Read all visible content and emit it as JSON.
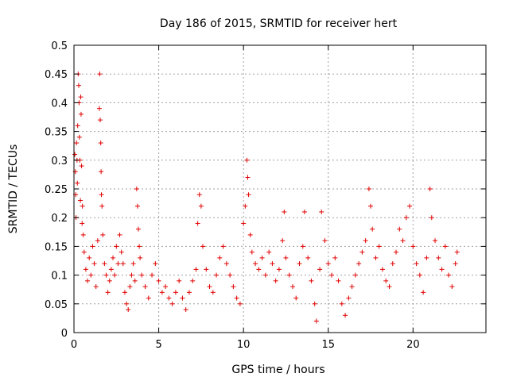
{
  "chart_data": {
    "type": "scatter",
    "title": "Day 186 of 2015, SRMTID for receiver hert",
    "xlabel": "GPS time / hours",
    "ylabel": "SRMTID / TECUs",
    "xlim": [
      0,
      24.3
    ],
    "ylim": [
      0,
      0.5
    ],
    "xticks": [
      0,
      5,
      10,
      15,
      20
    ],
    "yticks": [
      0,
      0.05,
      0.1,
      0.15,
      0.2,
      0.25,
      0.3,
      0.35,
      0.4,
      0.45,
      0.5
    ],
    "grid": true,
    "marker": "+",
    "color": "#e00000",
    "series": [
      {
        "name": "SRMTID",
        "points": [
          [
            0.05,
            0.31
          ],
          [
            0.08,
            0.28
          ],
          [
            0.1,
            0.24
          ],
          [
            0.12,
            0.2
          ],
          [
            0.15,
            0.33
          ],
          [
            0.18,
            0.3
          ],
          [
            0.2,
            0.26
          ],
          [
            0.22,
            0.36
          ],
          [
            0.25,
            0.45
          ],
          [
            0.28,
            0.43
          ],
          [
            0.3,
            0.4
          ],
          [
            0.32,
            0.34
          ],
          [
            0.35,
            0.3
          ],
          [
            0.38,
            0.23
          ],
          [
            0.4,
            0.41
          ],
          [
            0.42,
            0.38
          ],
          [
            0.45,
            0.29
          ],
          [
            0.48,
            0.19
          ],
          [
            0.5,
            0.22
          ],
          [
            0.55,
            0.17
          ],
          [
            0.6,
            0.14
          ],
          [
            0.7,
            0.11
          ],
          [
            0.8,
            0.09
          ],
          [
            0.9,
            0.13
          ],
          [
            1.0,
            0.1
          ],
          [
            1.1,
            0.15
          ],
          [
            1.2,
            0.12
          ],
          [
            1.3,
            0.08
          ],
          [
            1.4,
            0.16
          ],
          [
            1.5,
            0.39
          ],
          [
            1.52,
            0.45
          ],
          [
            1.55,
            0.37
          ],
          [
            1.58,
            0.33
          ],
          [
            1.6,
            0.28
          ],
          [
            1.62,
            0.24
          ],
          [
            1.65,
            0.22
          ],
          [
            1.7,
            0.17
          ],
          [
            1.8,
            0.12
          ],
          [
            1.9,
            0.1
          ],
          [
            2.0,
            0.07
          ],
          [
            2.1,
            0.09
          ],
          [
            2.2,
            0.11
          ],
          [
            2.3,
            0.13
          ],
          [
            2.4,
            0.1
          ],
          [
            2.5,
            0.15
          ],
          [
            2.6,
            0.12
          ],
          [
            2.7,
            0.17
          ],
          [
            2.8,
            0.14
          ],
          [
            2.9,
            0.12
          ],
          [
            3.0,
            0.07
          ],
          [
            3.1,
            0.05
          ],
          [
            3.2,
            0.04
          ],
          [
            3.3,
            0.08
          ],
          [
            3.4,
            0.1
          ],
          [
            3.5,
            0.12
          ],
          [
            3.6,
            0.09
          ],
          [
            3.7,
            0.25
          ],
          [
            3.75,
            0.22
          ],
          [
            3.8,
            0.18
          ],
          [
            3.85,
            0.15
          ],
          [
            3.9,
            0.13
          ],
          [
            4.0,
            0.1
          ],
          [
            4.2,
            0.08
          ],
          [
            4.4,
            0.06
          ],
          [
            4.6,
            0.1
          ],
          [
            4.8,
            0.12
          ],
          [
            5.0,
            0.09
          ],
          [
            5.2,
            0.07
          ],
          [
            5.4,
            0.08
          ],
          [
            5.6,
            0.06
          ],
          [
            5.8,
            0.05
          ],
          [
            6.0,
            0.07
          ],
          [
            6.2,
            0.09
          ],
          [
            6.4,
            0.06
          ],
          [
            6.6,
            0.04
          ],
          [
            6.8,
            0.07
          ],
          [
            7.0,
            0.09
          ],
          [
            7.2,
            0.11
          ],
          [
            7.3,
            0.19
          ],
          [
            7.4,
            0.24
          ],
          [
            7.5,
            0.22
          ],
          [
            7.6,
            0.15
          ],
          [
            7.8,
            0.11
          ],
          [
            8.0,
            0.08
          ],
          [
            8.2,
            0.07
          ],
          [
            8.4,
            0.1
          ],
          [
            8.6,
            0.13
          ],
          [
            8.8,
            0.15
          ],
          [
            9.0,
            0.12
          ],
          [
            9.2,
            0.1
          ],
          [
            9.4,
            0.08
          ],
          [
            9.6,
            0.06
          ],
          [
            9.8,
            0.05
          ],
          [
            10.0,
            0.19
          ],
          [
            10.1,
            0.22
          ],
          [
            10.2,
            0.3
          ],
          [
            10.25,
            0.27
          ],
          [
            10.3,
            0.24
          ],
          [
            10.4,
            0.17
          ],
          [
            10.5,
            0.14
          ],
          [
            10.7,
            0.12
          ],
          [
            10.9,
            0.11
          ],
          [
            11.1,
            0.13
          ],
          [
            11.3,
            0.1
          ],
          [
            11.5,
            0.14
          ],
          [
            11.7,
            0.12
          ],
          [
            11.9,
            0.09
          ],
          [
            12.1,
            0.11
          ],
          [
            12.3,
            0.16
          ],
          [
            12.4,
            0.21
          ],
          [
            12.5,
            0.13
          ],
          [
            12.7,
            0.1
          ],
          [
            12.9,
            0.08
          ],
          [
            13.1,
            0.06
          ],
          [
            13.3,
            0.12
          ],
          [
            13.5,
            0.15
          ],
          [
            13.6,
            0.21
          ],
          [
            13.8,
            0.13
          ],
          [
            14.0,
            0.09
          ],
          [
            14.2,
            0.05
          ],
          [
            14.3,
            0.02
          ],
          [
            14.5,
            0.11
          ],
          [
            14.6,
            0.21
          ],
          [
            14.8,
            0.16
          ],
          [
            15.0,
            0.12
          ],
          [
            15.2,
            0.1
          ],
          [
            15.4,
            0.13
          ],
          [
            15.6,
            0.09
          ],
          [
            15.8,
            0.05
          ],
          [
            16.0,
            0.03
          ],
          [
            16.2,
            0.06
          ],
          [
            16.4,
            0.08
          ],
          [
            16.6,
            0.1
          ],
          [
            16.8,
            0.12
          ],
          [
            17.0,
            0.14
          ],
          [
            17.2,
            0.16
          ],
          [
            17.4,
            0.25
          ],
          [
            17.5,
            0.22
          ],
          [
            17.6,
            0.18
          ],
          [
            17.8,
            0.13
          ],
          [
            18.0,
            0.15
          ],
          [
            18.2,
            0.11
          ],
          [
            18.4,
            0.09
          ],
          [
            18.6,
            0.08
          ],
          [
            18.8,
            0.12
          ],
          [
            19.0,
            0.14
          ],
          [
            19.2,
            0.18
          ],
          [
            19.4,
            0.16
          ],
          [
            19.6,
            0.2
          ],
          [
            19.8,
            0.22
          ],
          [
            20.0,
            0.15
          ],
          [
            20.2,
            0.12
          ],
          [
            20.4,
            0.1
          ],
          [
            20.6,
            0.07
          ],
          [
            20.8,
            0.13
          ],
          [
            21.0,
            0.25
          ],
          [
            21.1,
            0.2
          ],
          [
            21.3,
            0.16
          ],
          [
            21.5,
            0.13
          ],
          [
            21.7,
            0.11
          ],
          [
            21.9,
            0.15
          ],
          [
            22.1,
            0.1
          ],
          [
            22.3,
            0.08
          ],
          [
            22.5,
            0.12
          ],
          [
            22.6,
            0.14
          ]
        ]
      }
    ]
  }
}
